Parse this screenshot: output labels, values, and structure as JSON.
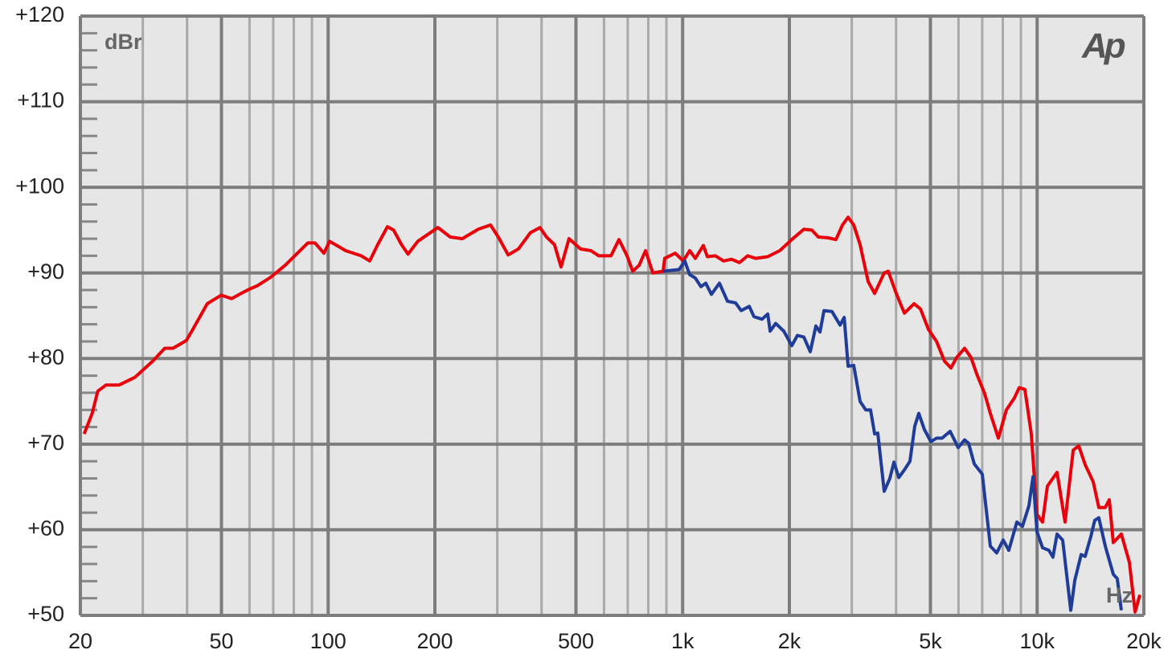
{
  "chart_data": {
    "type": "line",
    "y_unit": "dBr",
    "x_unit": "Hz",
    "logo": "Ap",
    "xscale": "log",
    "grid": true,
    "xlim": [
      20,
      20000
    ],
    "ylim": [
      50,
      120
    ],
    "xticks": [
      20,
      50,
      100,
      200,
      500,
      {
        "value": 1000,
        "label": "1k"
      },
      {
        "value": 2000,
        "label": "2k"
      },
      {
        "value": 5000,
        "label": "5k"
      },
      {
        "value": 10000,
        "label": "10k"
      },
      {
        "value": 20000,
        "label": "20k"
      }
    ],
    "xminorticks": [
      30,
      40,
      60,
      70,
      80,
      90,
      300,
      400,
      600,
      700,
      800,
      900,
      3000,
      4000,
      6000,
      7000,
      8000,
      9000
    ],
    "yticks": [
      {
        "value": 50,
        "label": "+50"
      },
      {
        "value": 60,
        "label": "+60"
      },
      {
        "value": 70,
        "label": "+70"
      },
      {
        "value": 80,
        "label": "+80"
      },
      {
        "value": 90,
        "label": "+90"
      },
      {
        "value": 100,
        "label": "+100"
      },
      {
        "value": 110,
        "label": "+110"
      },
      {
        "value": 120,
        "label": "+120"
      }
    ],
    "yminorticks": [
      52,
      54,
      56,
      58,
      62,
      64,
      66,
      68,
      72,
      74,
      76,
      78,
      82,
      84,
      86,
      88,
      92,
      94,
      96,
      98,
      102,
      104,
      106,
      108,
      112,
      114,
      116,
      118
    ],
    "series": [
      {
        "color": "#e8000b",
        "x": [
          20.5,
          21.6,
          22.4,
          23.6,
          25.7,
          28.5,
          32,
          34.6,
          36.5,
          39.8,
          41.5,
          45.6,
          49.9,
          53.4,
          56.8,
          59.9,
          63.1,
          68.9,
          75.7,
          81.9,
          87.6,
          91.8,
          97.3,
          100.9,
          112,
          124,
          131,
          138,
          147,
          153,
          161,
          168,
          179,
          191,
          204,
          221,
          239,
          265,
          287,
          302,
          322,
          344,
          372,
          396,
          413,
          435,
          454,
          478,
          515,
          551,
          580,
          628,
          661,
          697,
          723,
          754,
          786,
          824,
          881,
          890,
          953,
          1004,
          1047,
          1086,
          1144,
          1174,
          1237,
          1304,
          1373,
          1447,
          1525,
          1607,
          1738,
          1880,
          2032,
          2197,
          2315,
          2413,
          2570,
          2708,
          2825,
          2929,
          3038,
          3167,
          3337,
          3480,
          3704,
          3802,
          4006,
          4221,
          4494,
          4686,
          4937,
          5202,
          5478,
          5713,
          5926,
          6244,
          6512,
          6754,
          7112,
          7378,
          7774,
          8190,
          8629,
          8904,
          9235,
          9628,
          9985,
          10357,
          10686,
          11381,
          11991,
          12637,
          13104,
          13663,
          14393,
          14930,
          15570,
          15980,
          16400,
          17280,
          18210,
          18890,
          19490
        ],
        "values": [
          71.2,
          73.6,
          76.2,
          76.9,
          76.9,
          77.8,
          79.7,
          81.2,
          81.2,
          82.1,
          83.4,
          86.4,
          87.4,
          87.0,
          87.6,
          88.1,
          88.5,
          89.5,
          90.9,
          92.3,
          93.5,
          93.5,
          92.3,
          93.7,
          92.6,
          92.0,
          91.4,
          93.3,
          95.4,
          95.0,
          93.3,
          92.2,
          93.7,
          94.5,
          95.3,
          94.2,
          94.0,
          95.1,
          95.6,
          94.2,
          92.1,
          92.8,
          94.7,
          95.3,
          94.2,
          93.3,
          90.7,
          94.0,
          92.8,
          92.6,
          92.0,
          92.0,
          93.9,
          92.0,
          90.2,
          90.9,
          92.6,
          90.0,
          90.2,
          91.7,
          92.3,
          91.4,
          92.6,
          91.7,
          93.2,
          91.9,
          92.0,
          91.4,
          91.6,
          91.2,
          92.0,
          91.7,
          91.9,
          92.6,
          93.9,
          95.1,
          95.0,
          94.2,
          94.1,
          93.9,
          95.6,
          96.5,
          95.6,
          93.3,
          89.0,
          87.6,
          90.0,
          90.2,
          87.6,
          85.3,
          86.4,
          85.8,
          83.4,
          82.0,
          79.7,
          78.9,
          80.1,
          81.2,
          80.1,
          78.2,
          75.9,
          73.6,
          70.7,
          74.0,
          75.4,
          76.6,
          76.4,
          71.2,
          61.8,
          60.9,
          65.1,
          66.7,
          60.9,
          69.3,
          69.8,
          67.6,
          65.6,
          62.6,
          62.6,
          63.5,
          58.5,
          59.5,
          56.2,
          50.4,
          52.4
        ]
      },
      {
        "color": "#1f3c99",
        "x": [
          881,
          978,
          1014,
          1047,
          1086,
          1126,
          1162,
          1205,
          1270,
          1338,
          1410,
          1462,
          1541,
          1589,
          1675,
          1738,
          1765,
          1830,
          1929,
          2032,
          2107,
          2197,
          2291,
          2376,
          2440,
          2505,
          2638,
          2781,
          2855,
          2929,
          3038,
          3167,
          3285,
          3389,
          3480,
          3552,
          3704,
          3842,
          3944,
          4071,
          4221,
          4377,
          4516,
          4636,
          4809,
          5014,
          5202,
          5393,
          5683,
          5988,
          6244,
          6409,
          6645,
          7001,
          7378,
          7692,
          8020,
          8321,
          8767,
          9093,
          9481,
          9733,
          9985,
          10357,
          10797,
          11083,
          11381,
          11806,
          12440,
          12770,
          13310,
          13663,
          14170,
          14540,
          14930,
          15570,
          16400,
          16830,
          17280
        ],
        "values": [
          90.2,
          90.4,
          91.4,
          89.8,
          89.4,
          88.4,
          88.8,
          87.5,
          88.8,
          86.7,
          86.5,
          85.6,
          86.1,
          84.9,
          84.6,
          85.2,
          83.2,
          84.1,
          83.2,
          81.5,
          82.7,
          82.5,
          80.8,
          83.8,
          83.1,
          85.6,
          85.5,
          83.9,
          84.8,
          79.1,
          79.2,
          75.0,
          74.0,
          74.0,
          71.2,
          71.3,
          64.5,
          66.0,
          67.9,
          66.1,
          67.0,
          68.0,
          72.1,
          73.6,
          71.7,
          70.3,
          70.7,
          70.7,
          71.5,
          69.6,
          70.5,
          70.1,
          67.7,
          66.5,
          58.1,
          57.3,
          58.8,
          57.6,
          60.9,
          60.4,
          62.8,
          66.2,
          59.8,
          57.9,
          57.6,
          56.8,
          59.5,
          58.8,
          50.6,
          54.1,
          57.1,
          56.9,
          59.2,
          61.1,
          61.4,
          58.1,
          54.8,
          54.3,
          50.6
        ]
      }
    ]
  }
}
